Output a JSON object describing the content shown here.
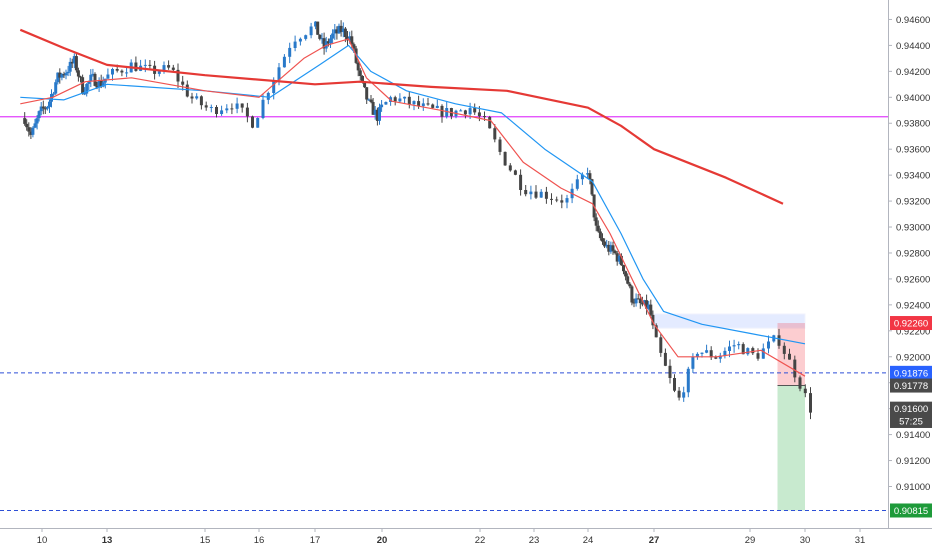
{
  "chart_data": {
    "type": "candlestick",
    "title": "",
    "xlabel": "",
    "ylabel": "",
    "ylim": [
      0.9068,
      0.9475
    ],
    "grid": false,
    "y_ticks": [
      "0.94600",
      "0.94400",
      "0.94200",
      "0.94000",
      "0.93800",
      "0.93600",
      "0.93400",
      "0.93200",
      "0.93000",
      "0.92800",
      "0.92600",
      "0.92400",
      "0.92200",
      "0.92000",
      "0.91800",
      "0.91600",
      "0.91400",
      "0.91200",
      "0.91000"
    ],
    "x_ticks": [
      {
        "label": "10",
        "day": 10
      },
      {
        "label": "13",
        "day": 13,
        "bold": true
      },
      {
        "label": "15",
        "day": 15
      },
      {
        "label": "16",
        "day": 16
      },
      {
        "label": "17",
        "day": 17
      },
      {
        "label": "20",
        "day": 20,
        "bold": true
      },
      {
        "label": "22",
        "day": 22
      },
      {
        "label": "23",
        "day": 23
      },
      {
        "label": "24",
        "day": 24
      },
      {
        "label": "27",
        "day": 27,
        "bold": true
      },
      {
        "label": "29",
        "day": 29
      },
      {
        "label": "30",
        "day": 30
      },
      {
        "label": "31",
        "day": 31
      }
    ],
    "price_path": [
      [
        9.2,
        0.9384
      ],
      [
        9.5,
        0.937
      ],
      [
        9.9,
        0.9388
      ],
      [
        10.3,
        0.9395
      ],
      [
        10.7,
        0.9415
      ],
      [
        11.1,
        0.942
      ],
      [
        11.5,
        0.9428
      ],
      [
        11.9,
        0.9405
      ],
      [
        12.3,
        0.9415
      ],
      [
        12.7,
        0.941
      ],
      [
        13.1,
        0.9418
      ],
      [
        13.5,
        0.9425
      ],
      [
        13.9,
        0.942
      ],
      [
        14.3,
        0.9422
      ],
      [
        14.7,
        0.94
      ],
      [
        15.1,
        0.939
      ],
      [
        15.5,
        0.9395
      ],
      [
        15.9,
        0.938
      ],
      [
        16.2,
        0.941
      ],
      [
        16.6,
        0.9445
      ],
      [
        17.0,
        0.9455
      ],
      [
        17.4,
        0.9438
      ],
      [
        17.8,
        0.9448
      ],
      [
        18.2,
        0.9452
      ],
      [
        18.6,
        0.9445
      ],
      [
        19.0,
        0.9415
      ],
      [
        19.4,
        0.9395
      ],
      [
        19.8,
        0.9385
      ],
      [
        20.2,
        0.94
      ],
      [
        20.6,
        0.9395
      ],
      [
        21.0,
        0.939
      ],
      [
        21.4,
        0.9388
      ],
      [
        21.8,
        0.9392
      ],
      [
        22.1,
        0.938
      ],
      [
        22.4,
        0.9355
      ],
      [
        22.8,
        0.933
      ],
      [
        23.2,
        0.9325
      ],
      [
        23.6,
        0.932
      ],
      [
        24.0,
        0.9345
      ],
      [
        24.4,
        0.9295
      ],
      [
        24.8,
        0.9285
      ],
      [
        25.2,
        0.928
      ],
      [
        25.6,
        0.927
      ],
      [
        26.0,
        0.9245
      ],
      [
        26.4,
        0.924
      ],
      [
        26.8,
        0.9238
      ],
      [
        27.1,
        0.9205
      ],
      [
        27.5,
        0.9165
      ],
      [
        27.9,
        0.9205
      ],
      [
        28.3,
        0.92
      ],
      [
        28.7,
        0.921
      ],
      [
        29.1,
        0.92
      ],
      [
        29.5,
        0.9215
      ],
      [
        29.9,
        0.918
      ],
      [
        30.1,
        0.916
      ]
    ],
    "sma_slow": [
      [
        9.0,
        0.9452
      ],
      [
        11.0,
        0.9438
      ],
      [
        13.0,
        0.9425
      ],
      [
        15.0,
        0.9417
      ],
      [
        17.0,
        0.941
      ],
      [
        19.0,
        0.9412
      ],
      [
        21.0,
        0.9408
      ],
      [
        22.5,
        0.9405
      ],
      [
        24.0,
        0.9392
      ],
      [
        25.5,
        0.9378
      ],
      [
        27.0,
        0.936
      ],
      [
        28.5,
        0.9338
      ],
      [
        29.6,
        0.9318
      ]
    ],
    "ema_fast": [
      [
        9.0,
        0.9395
      ],
      [
        10.5,
        0.94
      ],
      [
        12.0,
        0.9412
      ],
      [
        13.5,
        0.9415
      ],
      [
        15.0,
        0.9405
      ],
      [
        16.0,
        0.94
      ],
      [
        16.8,
        0.943
      ],
      [
        17.5,
        0.944
      ],
      [
        18.5,
        0.9445
      ],
      [
        19.3,
        0.9415
      ],
      [
        20.2,
        0.9397
      ],
      [
        21.2,
        0.939
      ],
      [
        22.2,
        0.9382
      ],
      [
        22.8,
        0.935
      ],
      [
        23.5,
        0.933
      ],
      [
        24.2,
        0.9318
      ],
      [
        25.0,
        0.9295
      ],
      [
        26.0,
        0.926
      ],
      [
        27.0,
        0.9225
      ],
      [
        27.5,
        0.92
      ],
      [
        28.3,
        0.92
      ],
      [
        29.2,
        0.9205
      ],
      [
        30.0,
        0.9185
      ]
    ],
    "ema_mid": [
      [
        9.0,
        0.94
      ],
      [
        11.0,
        0.9398
      ],
      [
        13.0,
        0.941
      ],
      [
        15.0,
        0.9405
      ],
      [
        16.2,
        0.94
      ],
      [
        17.2,
        0.9425
      ],
      [
        18.5,
        0.944
      ],
      [
        19.5,
        0.942
      ],
      [
        20.5,
        0.9405
      ],
      [
        21.5,
        0.9395
      ],
      [
        22.4,
        0.9388
      ],
      [
        23.2,
        0.936
      ],
      [
        24.2,
        0.9335
      ],
      [
        25.5,
        0.9295
      ],
      [
        26.5,
        0.926
      ],
      [
        27.2,
        0.9235
      ],
      [
        28.0,
        0.9225
      ],
      [
        29.0,
        0.9218
      ],
      [
        30.0,
        0.921
      ]
    ],
    "support_level": 0.9385,
    "position": {
      "entry": 0.91778,
      "stop": 0.9226,
      "target": 0.90815,
      "x_start": 29.5,
      "x_end": 30.0
    },
    "resistance_zone": {
      "top": 0.9233,
      "bottom": 0.9222,
      "x_start": 27.0,
      "x_end": 30.0
    },
    "last_price": 0.916,
    "dashed_levels": [
      0.91876,
      0.90815
    ],
    "price_labels": [
      {
        "text": "0.92260",
        "value": 0.9226,
        "color": "#f23645"
      },
      {
        "text": "0.91876",
        "value": 0.91876,
        "color": "#2962ff"
      },
      {
        "text": "0.91778",
        "value": 0.91778,
        "color": "#4a4a4a"
      },
      {
        "text": "0.91600",
        "value": 0.916,
        "color": "#4a4a4a"
      },
      {
        "text": "57:25",
        "value": 0.91505,
        "color": "#4a4a4a"
      },
      {
        "text": "0.90815",
        "value": 0.90815,
        "color": "#1e9a3a"
      }
    ],
    "colors": {
      "up": "#2979c9",
      "down": "#444444",
      "sma": "#e53935",
      "ema_fast": "#ef5350",
      "ema_mid": "#2196f3",
      "support": "#e040fb",
      "dashed": "#2d4fd6"
    }
  }
}
